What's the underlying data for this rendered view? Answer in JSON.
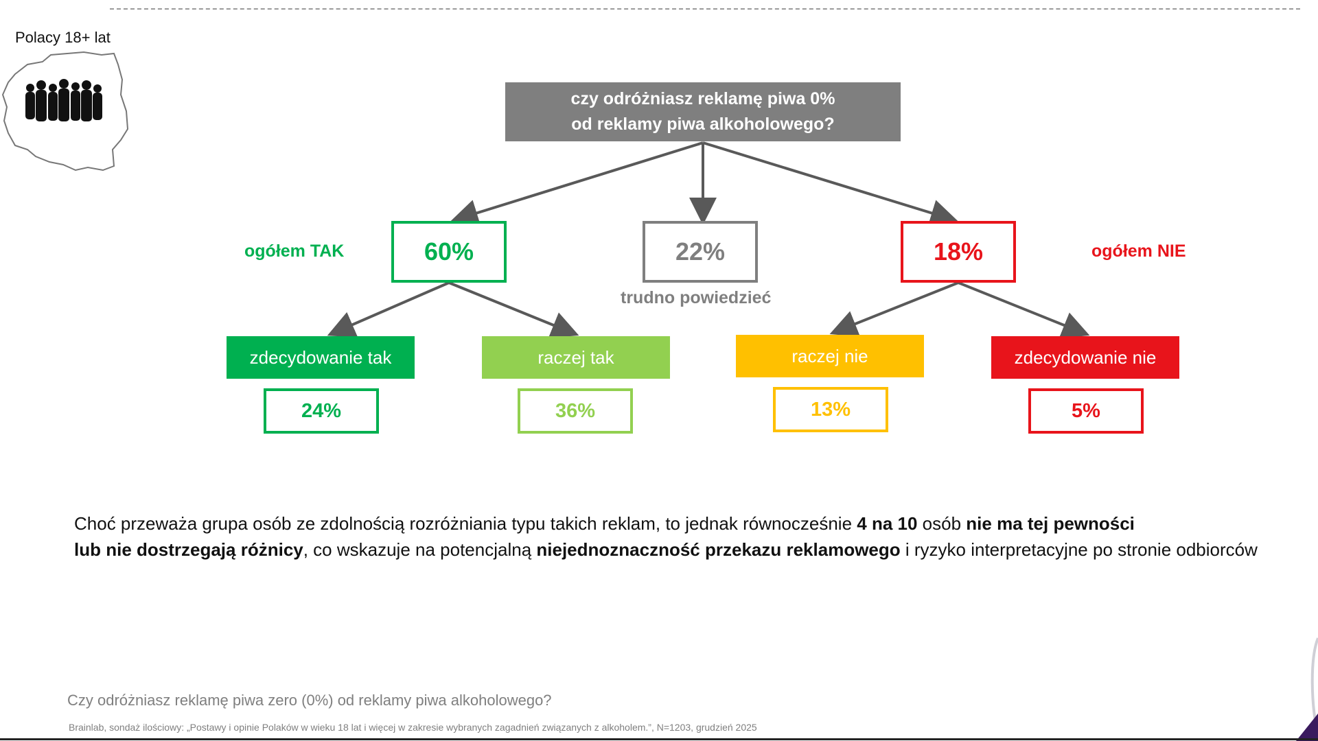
{
  "audience_label": "Polacy 18+ lat",
  "question_box": {
    "line1": "czy odróżniasz reklamę piwa 0%",
    "line2": "od reklamy  piwa alkoholowego?"
  },
  "main": {
    "yes": {
      "value": "60%",
      "label": "ogółem TAK",
      "color": "#00b050"
    },
    "unsure": {
      "value": "22%",
      "label": "trudno powiedzieć",
      "color": "#7f7f7f"
    },
    "no": {
      "value": "18%",
      "label": "ogółem NIE",
      "color": "#e8141b"
    }
  },
  "categories": [
    {
      "label": "zdecydowanie tak",
      "value": "24%",
      "fill": "#00b050",
      "border": "#00b050",
      "text_color": "#00b050"
    },
    {
      "label": "raczej tak",
      "value": "36%",
      "fill": "#92d050",
      "border": "#92d050",
      "text_color": "#92d050"
    },
    {
      "label": "raczej nie",
      "value": "13%",
      "fill": "#ffc000",
      "border": "#ffc000",
      "text_color": "#ffc000"
    },
    {
      "label": "zdecydowanie nie",
      "value": "5%",
      "fill": "#e8141b",
      "border": "#e8141b",
      "text_color": "#e8141b"
    }
  ],
  "summary": {
    "line1_a": "Choć przeważa grupa osób ze zdolnością rozróżniania typu takich reklam, to jednak równocześnie ",
    "line1_b": "4 na 10",
    "line1_c": " osób ",
    "line1_d": "nie ma tej pewności",
    "line2_a": "lub nie dostrzegają różnicy",
    "line2_b": ", co wskazuje na potencjalną ",
    "line2_c": "niejednoznaczność przekazu reklamowego",
    "line2_d": " i ryzyko interpretacyjne po stronie odbiorców"
  },
  "footer_question": "Czy odróżniasz reklamę piwa zero (0%) od reklamy piwa alkoholowego?",
  "source": "Brainlab, sondaż ilościowy: „Postawy i opinie Polaków w wieku 18 lat i więcej w zakresie wybranych zagadnień związanych z alkoholem.”, N=1203, grudzień 2025"
}
